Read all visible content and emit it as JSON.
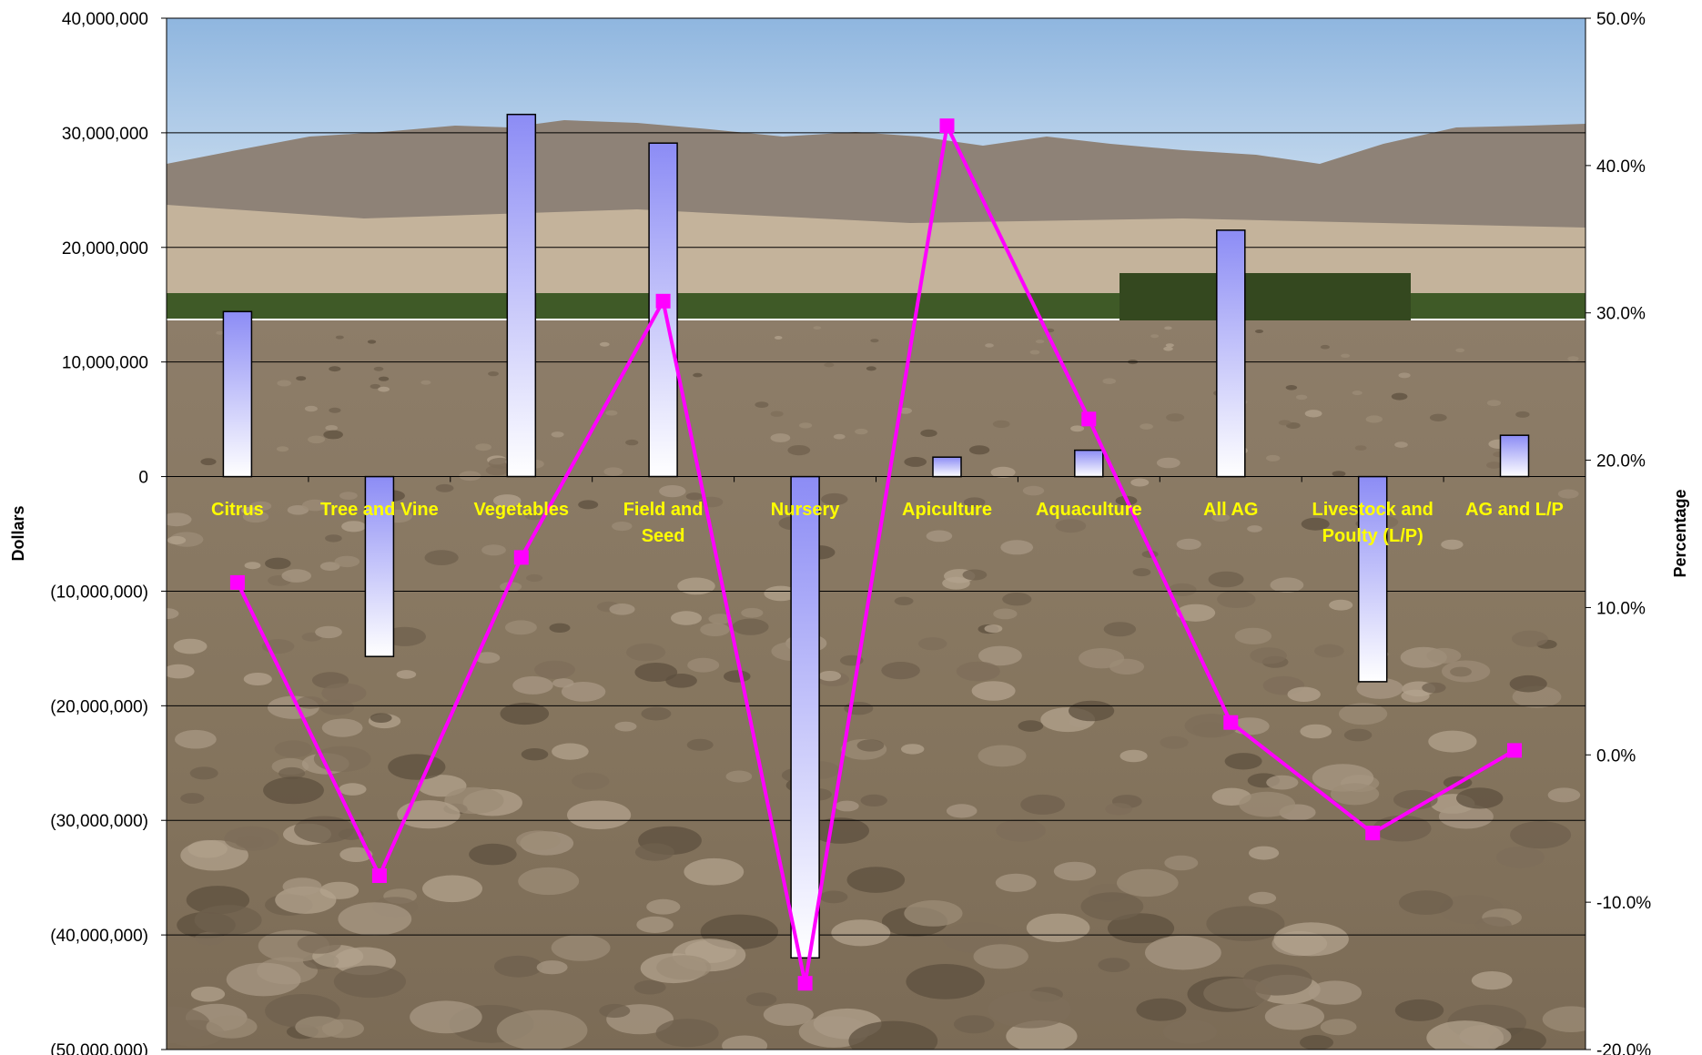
{
  "chart_data": {
    "type": "bar",
    "categories": [
      "Citrus",
      "Tree and Vine",
      "Vegetables",
      "Field and Seed",
      "Nursery",
      "Apiculture",
      "Aquaculture",
      "All AG",
      "Livestock and Poulty (L/P)",
      "AG and L/P"
    ],
    "series": [
      {
        "type": "bar",
        "axis": "left",
        "values": [
          14400000,
          -15700000,
          31600000,
          29100000,
          -42000000,
          1700000,
          2300000,
          21500000,
          -17900000,
          3600000
        ],
        "color_top": "#8c8cf5",
        "color_bottom": "#ffffff"
      },
      {
        "type": "line",
        "axis": "right",
        "values": [
          11.7,
          -8.2,
          13.4,
          30.8,
          -15.5,
          42.7,
          22.8,
          2.2,
          -5.3,
          0.3
        ],
        "color": "#ff00ff"
      }
    ],
    "ylabel": "Dollars",
    "y2label": "Percentage",
    "ylim": [
      -50000000,
      40000000
    ],
    "y2lim": [
      -20,
      50
    ],
    "yticks": [
      "40,000,000",
      "30,000,000",
      "20,000,000",
      "10,000,000",
      "0",
      "(10,000,000)",
      "(20,000,000)",
      "(30,000,000)",
      "(40,000,000)",
      "(50,000,000)"
    ],
    "y2ticks": [
      "50.0%",
      "40.0%",
      "30.0%",
      "20.0%",
      "10.0%",
      "0.0%",
      "-10.0%",
      "-20.0%"
    ],
    "grid": true,
    "legend": "none",
    "background": "photo of plowed farm field with mountains and palm trees",
    "colors": {
      "sky_top": "#8fb6df",
      "sky_bottom": "#c9dcef",
      "mountains": "#8e8277",
      "trees": "#3f5a27",
      "soil": "#8a7a66",
      "category_label": "#ffff00"
    }
  }
}
